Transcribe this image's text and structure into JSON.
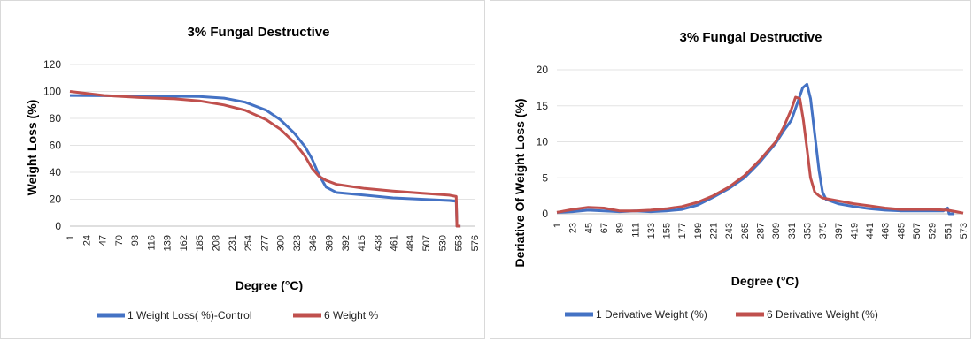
{
  "chart_data": [
    {
      "type": "line",
      "title": "3% Fungal Destructive",
      "xlabel": "Degree (°C)",
      "ylabel": "Weight Loss (%)",
      "ylim": [
        0,
        120
      ],
      "yticks": [
        0,
        20,
        40,
        60,
        80,
        100,
        120
      ],
      "xticks": [
        "1",
        "24",
        "47",
        "70",
        "93",
        "116",
        "139",
        "162",
        "185",
        "208",
        "231",
        "254",
        "277",
        "300",
        "323",
        "346",
        "369",
        "392",
        "415",
        "438",
        "461",
        "484",
        "507",
        "530",
        "553",
        "576"
      ],
      "grid": true,
      "legend": "bottom",
      "series": [
        {
          "name": "1 Weight Loss( %)-Control",
          "color": "#4472c4",
          "x": [
            1,
            50,
            100,
            150,
            185,
            220,
            250,
            280,
            300,
            320,
            335,
            345,
            355,
            365,
            380,
            420,
            460,
            500,
            540,
            550,
            551,
            556
          ],
          "y": [
            97,
            96.8,
            96.6,
            96.4,
            96.2,
            95,
            92,
            86,
            79,
            69,
            59,
            50,
            38,
            29,
            25,
            23,
            21,
            20,
            19,
            18.5,
            0,
            0
          ]
        },
        {
          "name": "6 Weight %",
          "color": "#c0504d",
          "x": [
            1,
            50,
            100,
            150,
            185,
            220,
            250,
            280,
            300,
            320,
            335,
            345,
            355,
            365,
            380,
            420,
            460,
            500,
            540,
            550,
            551,
            556
          ],
          "y": [
            100,
            97,
            95.5,
            94.5,
            93,
            90,
            86,
            79,
            72,
            62,
            52,
            43,
            37,
            34,
            31,
            28,
            26,
            24.5,
            23,
            22,
            0,
            0
          ]
        }
      ]
    },
    {
      "type": "line",
      "title": "3% Fungal Destructive",
      "xlabel": "Degree (°C)",
      "ylabel": "Deriative Of Weight Loss (%)",
      "ylim": [
        0,
        20
      ],
      "yticks": [
        0,
        5,
        10,
        15,
        20
      ],
      "xticks": [
        "1",
        "23",
        "45",
        "67",
        "89",
        "111",
        "133",
        "155",
        "177",
        "199",
        "221",
        "243",
        "265",
        "287",
        "309",
        "331",
        "353",
        "375",
        "397",
        "419",
        "441",
        "463",
        "485",
        "507",
        "529",
        "551",
        "573"
      ],
      "grid": true,
      "legend": "bottom",
      "series": [
        {
          "name": "1 Derivative Weight (%)",
          "color": "#4472c4",
          "x": [
            1,
            23,
            45,
            67,
            89,
            111,
            133,
            155,
            177,
            199,
            221,
            243,
            265,
            287,
            309,
            320,
            331,
            340,
            347,
            353,
            358,
            364,
            370,
            375,
            380,
            397,
            419,
            441,
            463,
            485,
            507,
            529,
            545,
            551,
            553,
            560
          ],
          "y": [
            0.2,
            0.3,
            0.5,
            0.4,
            0.3,
            0.4,
            0.3,
            0.4,
            0.6,
            1.2,
            2.3,
            3.5,
            5,
            7.2,
            9.8,
            11.5,
            13,
            15.5,
            17.5,
            18,
            16,
            11,
            6,
            3,
            2,
            1.4,
            1,
            0.7,
            0.5,
            0.4,
            0.4,
            0.4,
            0.4,
            0.8,
            0,
            0
          ]
        },
        {
          "name": "6 Derivative Weight (%)",
          "color": "#c0504d",
          "x": [
            1,
            23,
            45,
            67,
            89,
            111,
            133,
            155,
            177,
            199,
            221,
            243,
            265,
            287,
            309,
            320,
            331,
            337,
            343,
            348,
            353,
            358,
            364,
            370,
            375,
            397,
            419,
            441,
            463,
            485,
            507,
            529,
            551,
            563,
            573
          ],
          "y": [
            0.2,
            0.6,
            0.9,
            0.8,
            0.4,
            0.4,
            0.5,
            0.7,
            1,
            1.6,
            2.5,
            3.7,
            5.3,
            7.5,
            10,
            12,
            14.5,
            16.2,
            16,
            13,
            9,
            5,
            3,
            2.5,
            2.2,
            1.8,
            1.4,
            1.1,
            0.8,
            0.6,
            0.6,
            0.6,
            0.5,
            0.3,
            0.1
          ]
        }
      ]
    }
  ]
}
